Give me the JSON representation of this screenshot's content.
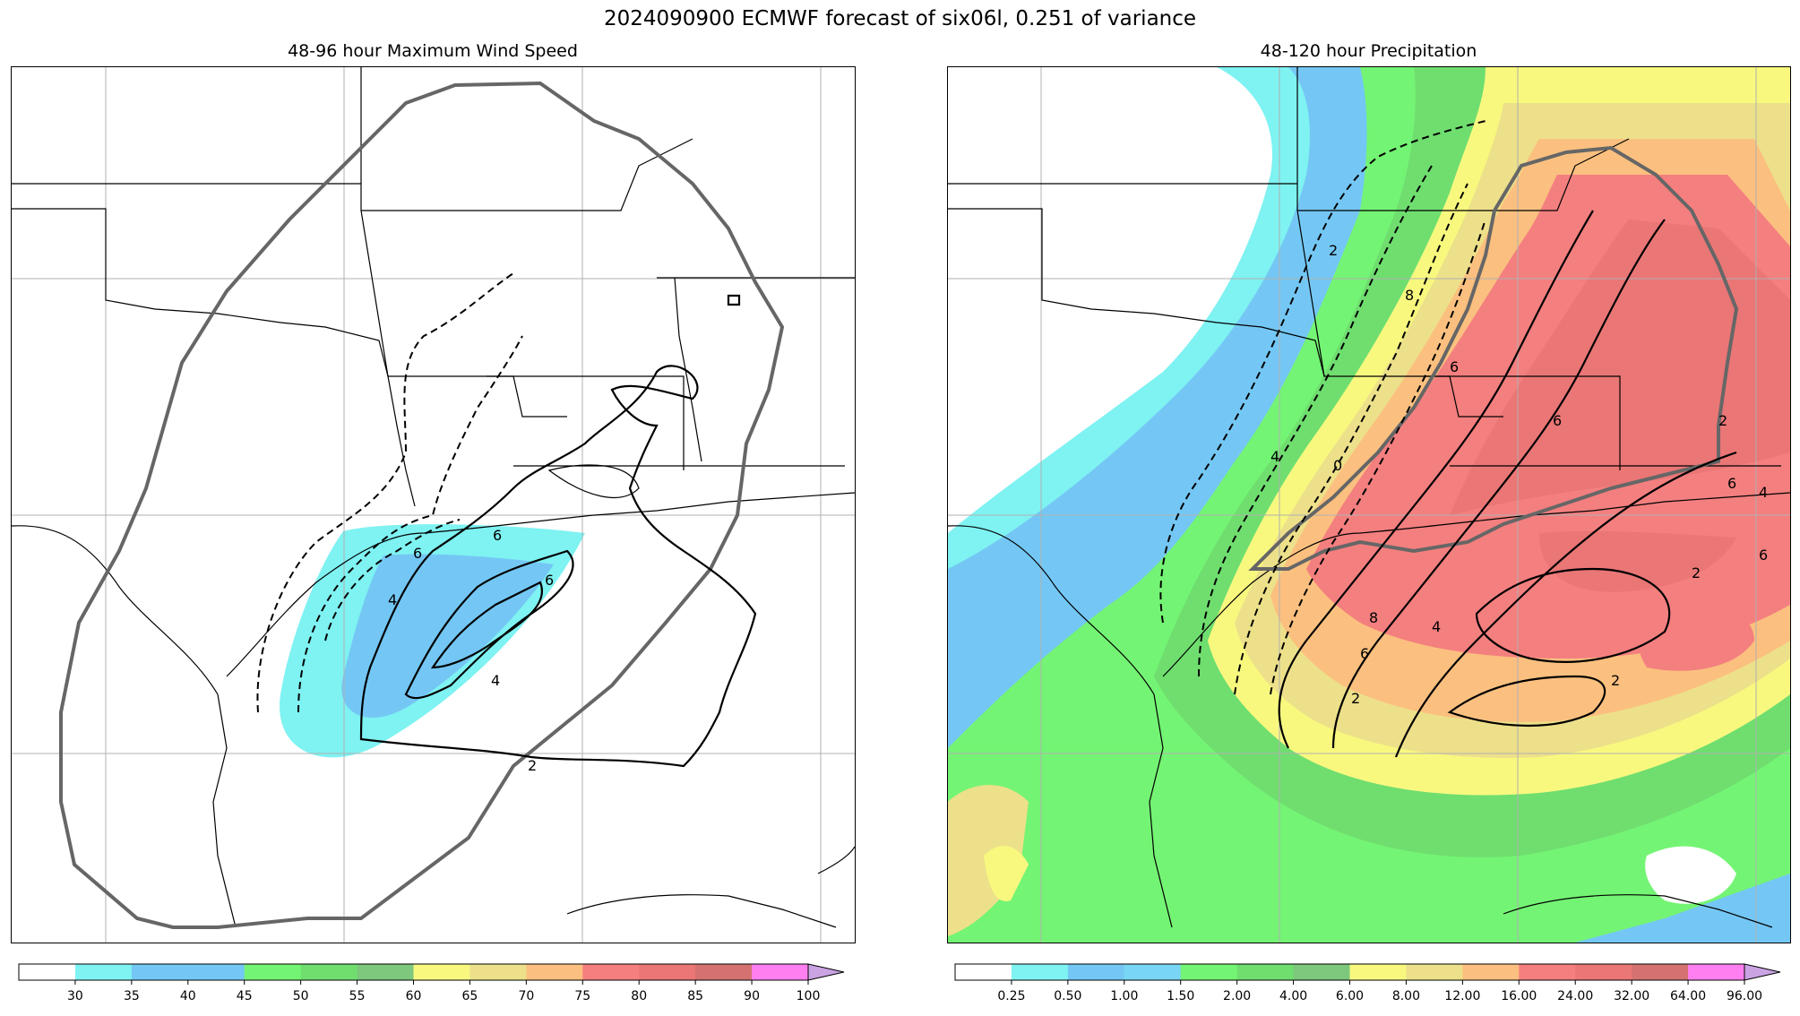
{
  "figure": {
    "title": "2024090900 ECMWF forecast of six06l, 0.251 of variance"
  },
  "panels": [
    {
      "id": "wind",
      "title": "48-96 hour Maximum Wind Speed",
      "contour_labels": [
        "6",
        "4",
        "6",
        "6",
        "4",
        "2"
      ],
      "colorbar": {
        "levels": [
          30,
          35,
          40,
          45,
          50,
          55,
          60,
          65,
          70,
          75,
          80,
          85,
          90,
          100
        ],
        "labels": [
          "30",
          "35",
          "40",
          "45",
          "50",
          "55",
          "60",
          "65",
          "70",
          "75",
          "80",
          "85",
          "90",
          "100"
        ],
        "colors": [
          "#ffffff",
          "#7ff2f2",
          "#74c7f4",
          "#74c7f4",
          "#74f474",
          "#6fde6f",
          "#7dc87d",
          "#f8f87f",
          "#ede08a",
          "#fbc07f",
          "#f47f7f",
          "#ea7676",
          "#d47272",
          "#ff7ff0",
          "#caa3e3"
        ]
      }
    },
    {
      "id": "precip",
      "title": "48-120 hour Precipitation",
      "contour_labels": [
        "2",
        "8",
        "4",
        "0",
        "6",
        "8",
        "4",
        "6",
        "2",
        "2",
        "6",
        "4",
        "2",
        "6",
        "2",
        "6"
      ],
      "colorbar": {
        "labels": [
          "0.25",
          "0.50",
          "1.00",
          "1.50",
          "2.00",
          "4.00",
          "6.00",
          "8.00",
          "12.00",
          "16.00",
          "24.00",
          "32.00",
          "64.00",
          "96.00"
        ],
        "colors": [
          "#ffffff",
          "#7ff2f2",
          "#74c7f4",
          "#78d6f4",
          "#74f474",
          "#6fde6f",
          "#7dc87d",
          "#f8f87f",
          "#ede08a",
          "#fbc07f",
          "#f47f7f",
          "#ea7676",
          "#d47272",
          "#ff7ff0",
          "#caa3e3"
        ]
      }
    }
  ]
}
